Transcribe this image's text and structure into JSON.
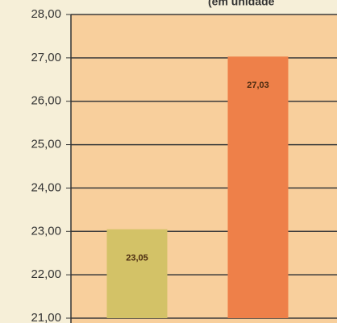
{
  "chart_data": {
    "type": "bar",
    "title": "(em unidade",
    "values": [
      23.05,
      27.03
    ],
    "value_labels": [
      "23,05",
      "27,03"
    ],
    "colors": [
      "#d3c267",
      "#ee8049"
    ],
    "ylim": [
      21,
      28
    ],
    "yticks": [
      {
        "value": 21,
        "label": "21,00"
      },
      {
        "value": 22,
        "label": "22,00"
      },
      {
        "value": 23,
        "label": "23,00"
      },
      {
        "value": 24,
        "label": "24,00"
      },
      {
        "value": 25,
        "label": "25,00"
      },
      {
        "value": 26,
        "label": "26,00"
      },
      {
        "value": 27,
        "label": "27,00"
      },
      {
        "value": 28,
        "label": "28,00"
      }
    ],
    "grid": true
  }
}
